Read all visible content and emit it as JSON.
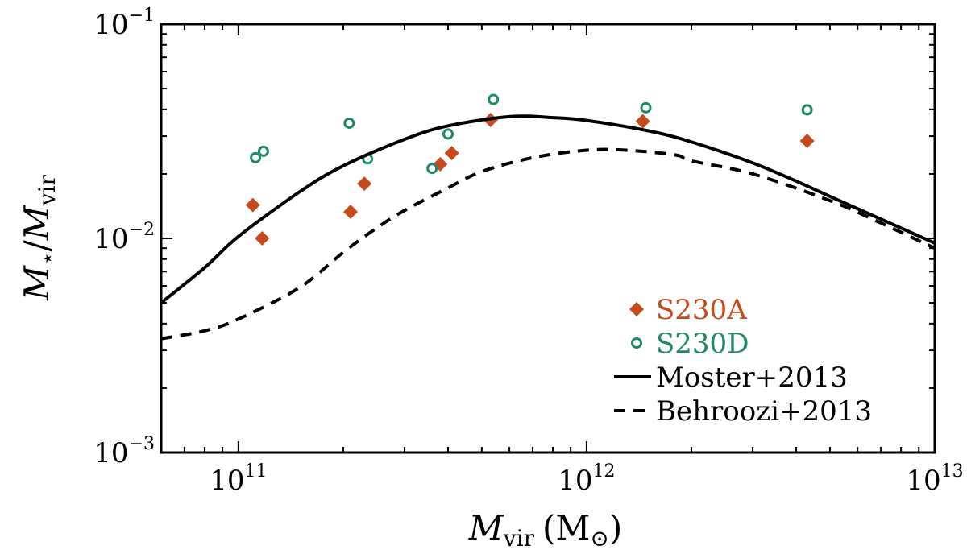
{
  "chart_data": {
    "type": "scatter",
    "title": "",
    "xlabel": "M_vir (M_⊙)",
    "xlabel_parts": {
      "symbol": "M",
      "sub": "vir",
      "unit": "(M",
      "unit_sub": "⊙",
      "unit_close": ")"
    },
    "ylabel": "M_⋆/M_vir",
    "ylabel_parts": {
      "symbol1": "M",
      "sub1": "⋆",
      "slash": "/",
      "symbol2": "M",
      "sub2": "vir"
    },
    "xscale": "log",
    "yscale": "log",
    "xlim": [
      60000000000.0,
      10000000000000.0
    ],
    "ylim": [
      0.001,
      0.1
    ],
    "x_ticks": [
      {
        "value": 100000000000.0,
        "base": "10",
        "exp": "11"
      },
      {
        "value": 1000000000000.0,
        "base": "10",
        "exp": "12"
      },
      {
        "value": 10000000000000.0,
        "base": "10",
        "exp": "13"
      }
    ],
    "y_ticks": [
      {
        "value": 0.001,
        "base": "10",
        "exp": "−3"
      },
      {
        "value": 0.01,
        "base": "10",
        "exp": "−2"
      },
      {
        "value": 0.1,
        "base": "10",
        "exp": "−1"
      }
    ],
    "legend_position": "lower-right",
    "series": [
      {
        "name": "S230A",
        "kind": "points",
        "marker": "diamond",
        "color": "#c54a1c",
        "points": [
          {
            "x": 110000000000.0,
            "y": 0.0143
          },
          {
            "x": 117000000000.0,
            "y": 0.01
          },
          {
            "x": 210000000000.0,
            "y": 0.0133
          },
          {
            "x": 230000000000.0,
            "y": 0.018
          },
          {
            "x": 380000000000.0,
            "y": 0.0222
          },
          {
            "x": 410000000000.0,
            "y": 0.025
          },
          {
            "x": 530000000000.0,
            "y": 0.0357
          },
          {
            "x": 1450000000000.0,
            "y": 0.0352
          },
          {
            "x": 4300000000000.0,
            "y": 0.0285
          }
        ]
      },
      {
        "name": "S230D",
        "kind": "points",
        "marker": "circle",
        "color": "#1e8a63",
        "points": [
          {
            "x": 112000000000.0,
            "y": 0.0238
          },
          {
            "x": 118000000000.0,
            "y": 0.0255
          },
          {
            "x": 208000000000.0,
            "y": 0.0345
          },
          {
            "x": 235000000000.0,
            "y": 0.0235
          },
          {
            "x": 360000000000.0,
            "y": 0.0212
          },
          {
            "x": 400000000000.0,
            "y": 0.0307
          },
          {
            "x": 540000000000.0,
            "y": 0.0445
          },
          {
            "x": 1480000000000.0,
            "y": 0.0407
          },
          {
            "x": 4300000000000.0,
            "y": 0.0398
          }
        ]
      },
      {
        "name": "Moster+2013",
        "kind": "line",
        "dash": "solid",
        "color": "#000000",
        "points": [
          {
            "x": 60000000000.0,
            "y": 0.005
          },
          {
            "x": 80000000000.0,
            "y": 0.0073
          },
          {
            "x": 100000000000.0,
            "y": 0.0102
          },
          {
            "x": 150000000000.0,
            "y": 0.0165
          },
          {
            "x": 200000000000.0,
            "y": 0.0218
          },
          {
            "x": 300000000000.0,
            "y": 0.029
          },
          {
            "x": 400000000000.0,
            "y": 0.0335
          },
          {
            "x": 600000000000.0,
            "y": 0.037
          },
          {
            "x": 800000000000.0,
            "y": 0.0366
          },
          {
            "x": 1000000000000.0,
            "y": 0.0355
          },
          {
            "x": 1500000000000.0,
            "y": 0.0318
          },
          {
            "x": 2000000000000.0,
            "y": 0.0282
          },
          {
            "x": 3000000000000.0,
            "y": 0.0225
          },
          {
            "x": 4000000000000.0,
            "y": 0.0185
          },
          {
            "x": 5000000000000.0,
            "y": 0.0157
          },
          {
            "x": 7000000000000.0,
            "y": 0.0123
          },
          {
            "x": 10000000000000.0,
            "y": 0.0095
          }
        ]
      },
      {
        "name": "Behroozi+2013",
        "kind": "line",
        "dash": "dashed",
        "color": "#000000",
        "points": [
          {
            "x": 60000000000.0,
            "y": 0.0034
          },
          {
            "x": 80000000000.0,
            "y": 0.0037
          },
          {
            "x": 100000000000.0,
            "y": 0.0042
          },
          {
            "x": 150000000000.0,
            "y": 0.0059
          },
          {
            "x": 200000000000.0,
            "y": 0.0086
          },
          {
            "x": 250000000000.0,
            "y": 0.0112
          },
          {
            "x": 300000000000.0,
            "y": 0.0135
          },
          {
            "x": 400000000000.0,
            "y": 0.0172
          },
          {
            "x": 500000000000.0,
            "y": 0.0205
          },
          {
            "x": 700000000000.0,
            "y": 0.0238
          },
          {
            "x": 1000000000000.0,
            "y": 0.0258
          },
          {
            "x": 1300000000000.0,
            "y": 0.0258
          },
          {
            "x": 1800000000000.0,
            "y": 0.0245
          },
          {
            "x": 2000000000000.0,
            "y": 0.023
          },
          {
            "x": 3000000000000.0,
            "y": 0.02
          },
          {
            "x": 5000000000000.0,
            "y": 0.015
          },
          {
            "x": 7000000000000.0,
            "y": 0.0118
          },
          {
            "x": 10000000000000.0,
            "y": 0.009
          }
        ]
      }
    ]
  }
}
